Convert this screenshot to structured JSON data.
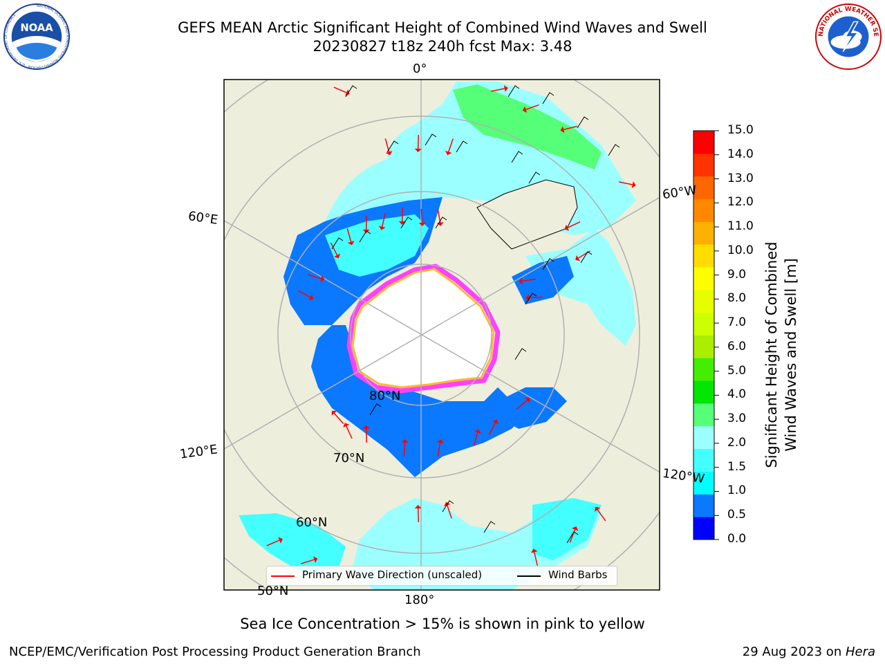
{
  "header": {
    "title_line1": "GEFS MEAN Arctic Significant Height of Combined Wind Waves and Swell",
    "title_line2": "20230827 t18z 240h fcst   Max: 3.48"
  },
  "logos": {
    "noaa_text": "NOAA",
    "noaa_ring_text": "NATIONAL OCEANIC AND ATMOSPHERIC ADMINISTRATION · U.S. DEPARTMENT OF COMMERCE",
    "nws_ring_text": "NATIONAL WEATHER SERVICE"
  },
  "map": {
    "projection": "north-polar-stereographic",
    "grid_labels": {
      "lon_0": "0°",
      "lon_60e": "60°E",
      "lon_120e": "120°E",
      "lon_180": "180°",
      "lon_60w": "60°W",
      "lon_120w": "120°W",
      "lat_80": "80°N",
      "lat_70": "70°N",
      "lat_60": "60°N",
      "lat_50": "50°N"
    },
    "colors": {
      "land": "#eeeedd",
      "ice_free_core": "#ffffff",
      "ice_edge_pink": "#ff40ff",
      "ice_edge_yellow": "#ffb830",
      "wave_arrow": "#ff0000",
      "wind_barb": "#000000",
      "gridline": "#b0b0b0"
    }
  },
  "legend": {
    "wave_direction": "Primary Wave Direction (unscaled)",
    "wind_barbs": "Wind Barbs"
  },
  "colorbar": {
    "label_line1": "Significant Height of Combined",
    "label_line2": "Wind Waves and Swell [m]",
    "ticks": [
      "15.0",
      "14.0",
      "13.0",
      "12.0",
      "11.0",
      "10.0",
      "9.0",
      "8.0",
      "7.0",
      "6.0",
      "5.0",
      "4.0",
      "3.0",
      "2.0",
      "1.5",
      "1.0",
      "0.5",
      "0.0"
    ],
    "levels": [
      {
        "range": "0.0-0.5",
        "color": "#0000ff"
      },
      {
        "range": "0.5-1.0",
        "color": "#0a78ff"
      },
      {
        "range": "1.0-1.5",
        "color": "#00ffff"
      },
      {
        "range": "1.5-2.0",
        "color": "#44ffff"
      },
      {
        "range": "2.0-3.0",
        "color": "#9cffff"
      },
      {
        "range": "3.0-4.0",
        "color": "#55ff77"
      },
      {
        "range": "4.0-5.0",
        "color": "#00e600"
      },
      {
        "range": "5.0-6.0",
        "color": "#44ee00"
      },
      {
        "range": "6.0-7.0",
        "color": "#aaee00"
      },
      {
        "range": "7.0-8.0",
        "color": "#ccff00"
      },
      {
        "range": "8.0-9.0",
        "color": "#e6ff00"
      },
      {
        "range": "9.0-10.0",
        "color": "#ffff00"
      },
      {
        "range": "10.0-11.0",
        "color": "#ffdd00"
      },
      {
        "range": "11.0-12.0",
        "color": "#ffb000"
      },
      {
        "range": "12.0-13.0",
        "color": "#ff8800"
      },
      {
        "range": "13.0-14.0",
        "color": "#ff6600"
      },
      {
        "range": "14.0-15.0",
        "color": "#ff3300"
      },
      {
        "range": "15.0+",
        "color": "#ff0000"
      }
    ]
  },
  "caption": "Sea Ice Concentration > 15% is shown in pink to yellow",
  "footer": {
    "left": "NCEP/EMC/Verification Post Processing Product Generation Branch",
    "right_date": "29 Aug 2023 on ",
    "right_host": "Hera"
  }
}
